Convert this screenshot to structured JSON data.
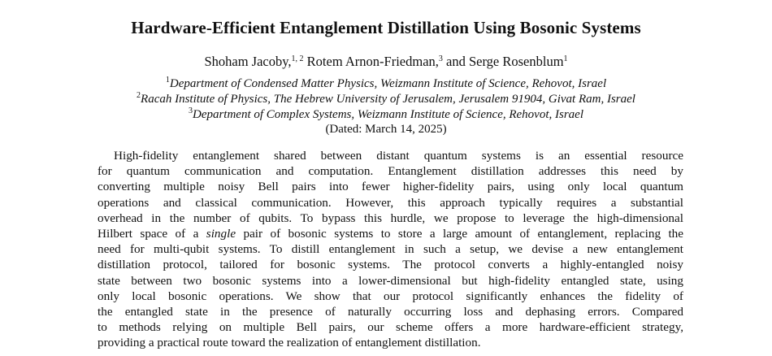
{
  "title": "Hardware-Efficient Entanglement Distillation Using Bosonic Systems",
  "authors": [
    {
      "name": "Shoham Jacoby,",
      "sup": "1, 2"
    },
    {
      "name": " Rotem Arnon-Friedman,",
      "sup": "3"
    },
    {
      "name": " and Serge Rosenblum",
      "sup": "1"
    }
  ],
  "affiliations": [
    {
      "sup": "1",
      "text": "Department of Condensed Matter Physics, Weizmann Institute of Science, Rehovot, Israel"
    },
    {
      "sup": "2",
      "text": "Racah Institute of Physics, The Hebrew University of Jerusalem, Jerusalem 91904, Givat Ram, Israel"
    },
    {
      "sup": "3",
      "text": "Department of Complex Systems, Weizmann Institute of Science, Rehovot, Israel"
    }
  ],
  "dated": "(Dated: March 14, 2025)",
  "abstract_lines": [
    "High-fidelity entanglement shared between distant quantum systems is an essential resource",
    "for quantum communication and computation. Entanglement distillation addresses this need by",
    "converting multiple noisy Bell pairs into fewer higher-fidelity pairs, using only local quantum",
    "operations and classical communication. However, this approach typically requires a substantial",
    "overhead in the number of qubits. To bypass this hurdle, we propose to leverage the high-dimensional",
    {
      "before": "Hilbert space of a ",
      "emph": "single",
      "after": " pair of bosonic systems to store a large amount of entanglement, replacing the"
    },
    "need for multi-qubit systems. To distill entanglement in such a setup, we devise a new entanglement",
    "distillation protocol, tailored for bosonic systems. The protocol converts a highly-entangled noisy",
    "state between two bosonic systems into a lower-dimensional but high-fidelity entangled state, using",
    "only local bosonic operations. We show that our protocol significantly enhances the fidelity of",
    "the entangled state in the presence of naturally occurring loss and dephasing errors. Compared",
    "to methods relying on multiple Bell pairs, our scheme offers a more hardware-efficient strategy,",
    "providing a practical route toward the realization of entanglement distillation."
  ]
}
